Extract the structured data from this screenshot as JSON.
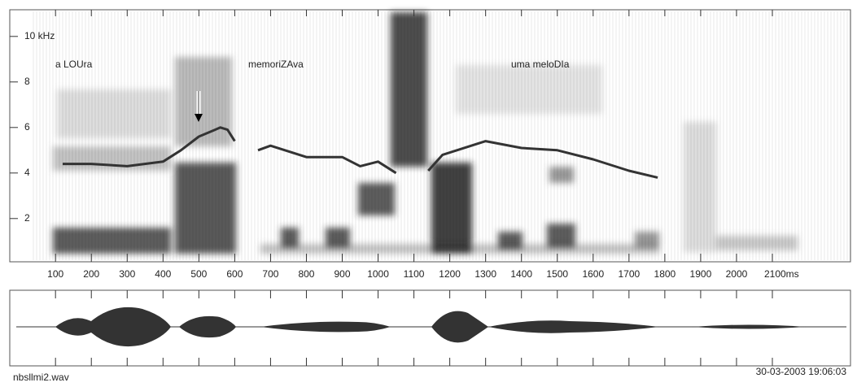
{
  "chart_data": {
    "type": "spectrogram",
    "annotations": [
      "a LOUra",
      "memoriZAva",
      "uma meloDIa"
    ],
    "file_name": "nbsllmi2.wav",
    "timestamp": "30-03-2003 19:06:03",
    "xlim": [
      36,
      2318
    ],
    "ylim": [
      0.1,
      11.1
    ],
    "xticks": [
      100,
      200,
      300,
      400,
      500,
      600,
      700,
      800,
      900,
      1000,
      1100,
      1200,
      1300,
      1400,
      1500,
      1600,
      1700,
      1800,
      1900,
      2000,
      {
        "value": 2100,
        "label": "2100ms"
      }
    ],
    "yticks": [
      2,
      4,
      6,
      8,
      {
        "value": 10,
        "label": "10 kHz"
      }
    ],
    "series": [
      {
        "color": "#333333",
        "x": [
          120,
          200,
          300,
          400,
          450,
          500,
          560,
          580,
          600,
          630,
          665,
          700,
          800,
          900,
          950,
          1000,
          1050,
          1100,
          1140,
          1180,
          1300,
          1400,
          1500,
          1600,
          1700,
          1780
        ],
        "values": [
          4.4,
          4.4,
          4.3,
          4.5,
          5.0,
          5.6,
          6.0,
          5.9,
          5.4,
          null,
          5.0,
          5.2,
          4.7,
          4.7,
          4.3,
          4.5,
          4.0,
          null,
          4.1,
          4.8,
          5.4,
          5.1,
          5.0,
          4.6,
          4.1,
          3.8
        ]
      }
    ]
  }
}
